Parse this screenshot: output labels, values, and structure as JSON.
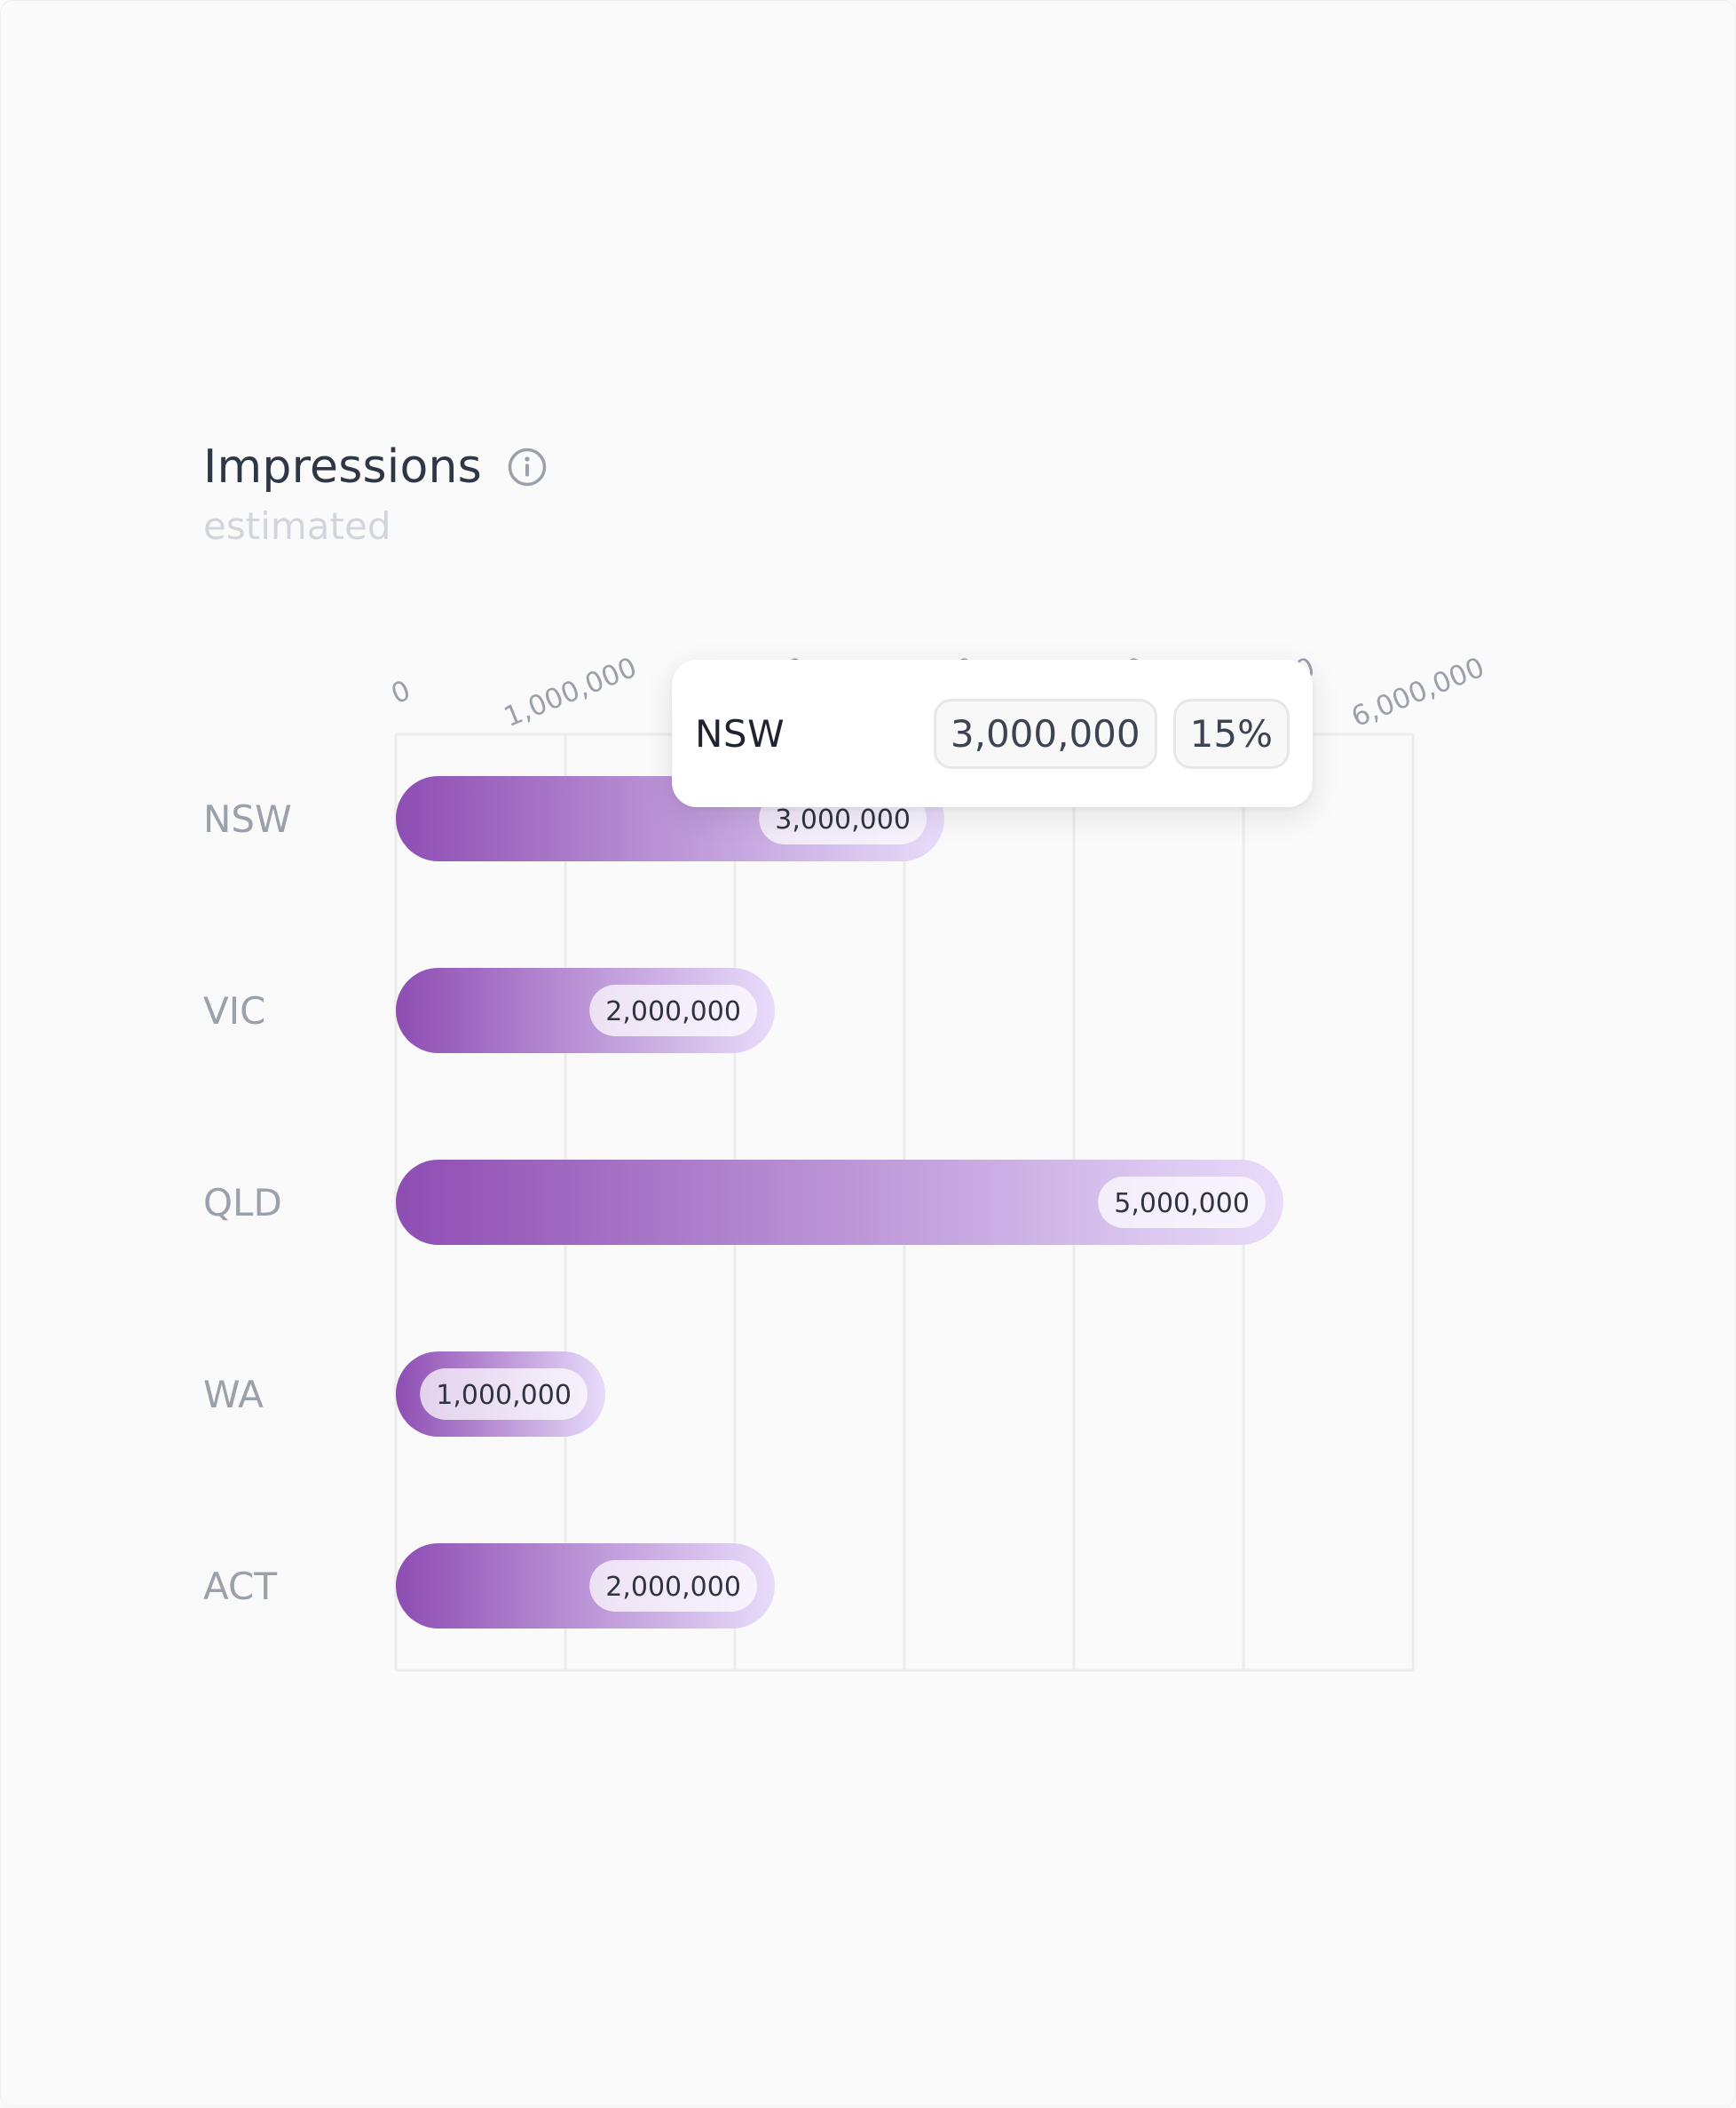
{
  "header": {
    "title": "Impressions",
    "subtitle": "estimated",
    "info_icon": "info-icon"
  },
  "tooltip": {
    "label": "NSW",
    "value": "3,000,000",
    "percent": "15%"
  },
  "colors": {
    "bar_start": "#8e4db3",
    "bar_end": "#e8dcfa",
    "grid": "#ececec",
    "tick_label": "#9aa1ab",
    "category_label": "#9aa1ab"
  },
  "chart_data": {
    "type": "bar",
    "orientation": "horizontal",
    "title": "Impressions",
    "subtitle": "estimated",
    "categories": [
      "NSW",
      "VIC",
      "QLD",
      "WA",
      "ACT"
    ],
    "values": [
      3000000,
      2000000,
      5000000,
      1000000,
      2000000
    ],
    "value_labels": [
      "3,000,000",
      "2,000,000",
      "5,000,000",
      "1,000,000",
      "2,000,000"
    ],
    "x_ticks": [
      0,
      1000000,
      2000000,
      3000000,
      4000000,
      5000000,
      6000000
    ],
    "x_tick_labels": [
      "0",
      "1,000,000",
      "2,000,000",
      "3,000,000",
      "4,000,000",
      "5,000,000",
      "6,000,000"
    ],
    "xlim": [
      0,
      6000000
    ],
    "xaxis_position": "top",
    "grid": true
  }
}
